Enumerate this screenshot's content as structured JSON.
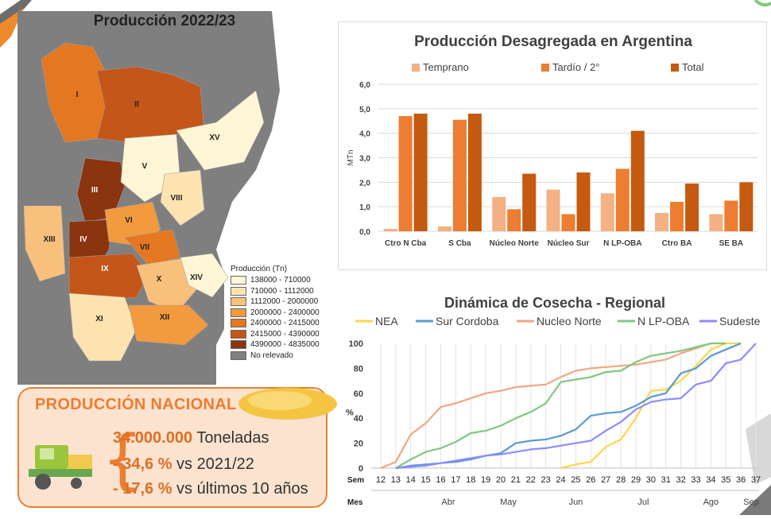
{
  "map": {
    "title": "Producción 2022/23",
    "legend_title": "Producción (Tn)",
    "legend": [
      {
        "label": "138000 - 710000",
        "color": "#fff6d5"
      },
      {
        "label": "710000 - 1112000",
        "color": "#fde3b0"
      },
      {
        "label": "1112000 - 2000000",
        "color": "#f9c07c"
      },
      {
        "label": "2000000 - 2400000",
        "color": "#f29a3e"
      },
      {
        "label": "2400000 - 2415000",
        "color": "#e57721"
      },
      {
        "label": "2415000 - 4390000",
        "color": "#c4561a"
      },
      {
        "label": "4390000 - 4835000",
        "color": "#8a3410"
      },
      {
        "label": "No relevado",
        "color": "#7f7f7f"
      }
    ],
    "zones": [
      "I",
      "II",
      "III",
      "IV",
      "V",
      "VI",
      "VII",
      "VIII",
      "IX",
      "X",
      "XI",
      "XII",
      "XIII",
      "XIV",
      "XV"
    ]
  },
  "production": {
    "title": "PRODUCCIÓN NACIONAL",
    "total_value": "34.000.000",
    "total_unit": "Toneladas",
    "change1_value": "- 34,6 %",
    "change1_text": "vs 2021/22",
    "change2_value": "- 17,6 %",
    "change2_text": "vs últimos 10 años"
  },
  "chart_data": [
    {
      "type": "bar",
      "title": "Producción Desagregada en Argentina",
      "ylabel": "MTn",
      "ylim": [
        0,
        6
      ],
      "yticks": [
        "0,0",
        "1,0",
        "2,0",
        "3,0",
        "4,0",
        "5,0",
        "6,0"
      ],
      "legend_position": "top",
      "categories": [
        "Ctro N Cba",
        "S Cba",
        "Núcleo Norte",
        "Núcleo Sur",
        "N LP-OBA",
        "Ctro BA",
        "SE BA"
      ],
      "series": [
        {
          "name": "Temprano",
          "color": "#f4b183",
          "values": [
            0.1,
            0.2,
            1.4,
            1.7,
            1.55,
            0.75,
            0.7
          ]
        },
        {
          "name": "Tardío / 2°",
          "color": "#ed7d31",
          "values": [
            4.7,
            4.55,
            0.9,
            0.7,
            2.55,
            1.2,
            1.25
          ]
        },
        {
          "name": "Total",
          "color": "#c55a11",
          "values": [
            4.8,
            4.8,
            2.35,
            2.4,
            4.1,
            1.95,
            2.0
          ]
        }
      ]
    },
    {
      "type": "line",
      "title": "Dinámica de Cosecha - Regional",
      "ylabel": "%",
      "ylim": [
        0,
        100
      ],
      "yticks": [
        "0",
        "20",
        "40",
        "60",
        "80",
        "100"
      ],
      "legend_position": "top",
      "x_label": "Sem",
      "month_label": "Mes",
      "x": [
        12,
        13,
        14,
        15,
        16,
        17,
        18,
        19,
        20,
        21,
        22,
        23,
        24,
        25,
        26,
        27,
        28,
        29,
        30,
        31,
        32,
        33,
        34,
        35,
        36,
        37
      ],
      "months": [
        {
          "label": "Abr",
          "at": 16.5
        },
        {
          "label": "May",
          "at": 20.5
        },
        {
          "label": "Jun",
          "at": 25
        },
        {
          "label": "Jul",
          "at": 29.5
        },
        {
          "label": "Ago",
          "at": 34
        },
        {
          "label": "Sep",
          "at": 37
        }
      ],
      "series": [
        {
          "name": "NEA",
          "color": "#ffd44d",
          "x": [
            24,
            25,
            26,
            27,
            28,
            29,
            30,
            31,
            32,
            33,
            34,
            35,
            36
          ],
          "values": [
            0,
            3,
            5,
            17,
            23,
            40,
            62,
            63,
            70,
            82,
            95,
            100,
            100
          ]
        },
        {
          "name": "Sur Cordoba",
          "color": "#5b9bd5",
          "x": [
            13,
            14,
            15,
            16,
            17,
            18,
            19,
            20,
            21,
            22,
            23,
            24,
            25,
            26,
            27,
            28,
            29,
            30,
            31,
            32,
            33,
            34,
            35,
            36
          ],
          "values": [
            0,
            2,
            3,
            4,
            5,
            7,
            10,
            12,
            20,
            22,
            23,
            26,
            31,
            42,
            44,
            45,
            50,
            57,
            60,
            76,
            80,
            90,
            95,
            100
          ]
        },
        {
          "name": "Nucleo Norte",
          "color": "#f4a582",
          "x": [
            12,
            13,
            14,
            15,
            16,
            17,
            18,
            19,
            20,
            21,
            22,
            23,
            24,
            25,
            26,
            27,
            28,
            29,
            30,
            31,
            32,
            33,
            34,
            35
          ],
          "values": [
            0,
            5,
            27,
            36,
            49,
            52,
            56,
            60,
            62,
            65,
            66,
            67,
            73,
            78,
            80,
            81,
            82,
            83,
            85,
            87,
            92,
            96,
            100,
            100
          ]
        },
        {
          "name": "N LP-OBA",
          "color": "#7fc97f",
          "x": [
            13,
            14,
            15,
            16,
            17,
            18,
            19,
            20,
            21,
            22,
            23,
            24,
            25,
            26,
            27,
            28,
            29,
            30,
            31,
            32,
            33,
            34,
            35
          ],
          "values": [
            0,
            7,
            13,
            16,
            21,
            28,
            30,
            34,
            40,
            45,
            52,
            69,
            71,
            73,
            77,
            78,
            85,
            90,
            92,
            94,
            97,
            100,
            100
          ]
        },
        {
          "name": "Sudeste",
          "color": "#8c8cff",
          "x": [
            13,
            14,
            15,
            16,
            17,
            18,
            19,
            20,
            21,
            22,
            23,
            24,
            25,
            26,
            27,
            28,
            29,
            30,
            31,
            32,
            33,
            34,
            35,
            36,
            37
          ],
          "values": [
            0,
            1,
            2,
            4,
            6,
            8,
            10,
            11,
            13,
            15,
            16,
            18,
            20,
            22,
            30,
            37,
            47,
            53,
            55,
            56,
            67,
            70,
            84,
            87,
            100
          ]
        }
      ]
    }
  ]
}
